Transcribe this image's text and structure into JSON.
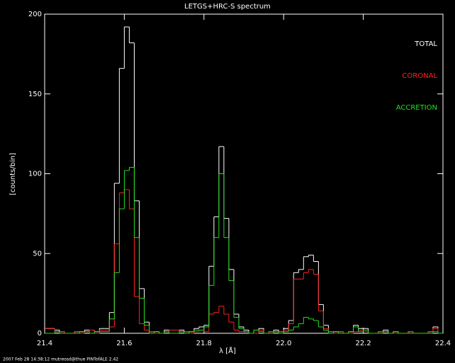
{
  "chart_data": {
    "type": "histogram",
    "title": "LETGS+HRC-S spectrum",
    "x_label": "λ [Å]",
    "y_label": "[counts/bin]",
    "footer": "2007 Feb 28 14:38:12 mutreosd@thue  PINTofALE 2.42",
    "bins": [
      21.4,
      21.4125,
      21.425,
      21.4375,
      21.45,
      21.4625,
      21.475,
      21.4875,
      21.5,
      21.5125,
      21.525,
      21.5375,
      21.55,
      21.5625,
      21.575,
      21.5875,
      21.6,
      21.6125,
      21.625,
      21.6375,
      21.65,
      21.6625,
      21.675,
      21.6875,
      21.7,
      21.7125,
      21.725,
      21.7375,
      21.75,
      21.7625,
      21.775,
      21.7875,
      21.8,
      21.8125,
      21.825,
      21.8375,
      21.85,
      21.8625,
      21.875,
      21.8875,
      21.9,
      21.9125,
      21.925,
      21.9375,
      21.95,
      21.9625,
      21.975,
      21.9875,
      22.0,
      22.0125,
      22.025,
      22.0375,
      22.05,
      22.0625,
      22.075,
      22.0875,
      22.1,
      22.1125,
      22.125,
      22.1375,
      22.15,
      22.1625,
      22.175,
      22.1875,
      22.2,
      22.2125,
      22.225,
      22.2375,
      22.25,
      22.2625,
      22.275,
      22.2875,
      22.3,
      22.3125,
      22.325,
      22.3375,
      22.35,
      22.3625,
      22.375,
      22.3875,
      22.4
    ],
    "series": [
      {
        "name": "TOTAL",
        "color": "#ffffff",
        "values": [
          3,
          3,
          2,
          1,
          0,
          0,
          1,
          1,
          2,
          2,
          1,
          3,
          3,
          13,
          94,
          166,
          192,
          182,
          83,
          28,
          7,
          1,
          1,
          0,
          2,
          2,
          2,
          2,
          1,
          1,
          3,
          4,
          5,
          42,
          73,
          117,
          72,
          40,
          12,
          4,
          2,
          0,
          2,
          3,
          0,
          1,
          2,
          1,
          3,
          8,
          38,
          40,
          48,
          49,
          45,
          18,
          5,
          1,
          1,
          1,
          0,
          1,
          5,
          3,
          3,
          0,
          0,
          1,
          2,
          0,
          1,
          0,
          0,
          1,
          0,
          0,
          0,
          1,
          4,
          0
        ]
      },
      {
        "name": "CORONAL",
        "color": "#ff2020",
        "values": [
          3,
          3,
          1,
          1,
          0,
          0,
          1,
          0,
          1,
          2,
          0,
          2,
          2,
          4,
          56,
          88,
          90,
          78,
          23,
          6,
          2,
          1,
          0,
          0,
          1,
          2,
          2,
          1,
          1,
          0,
          1,
          2,
          1,
          12,
          13,
          17,
          12,
          7,
          2,
          1,
          1,
          0,
          0,
          2,
          0,
          1,
          1,
          1,
          2,
          6,
          34,
          34,
          38,
          40,
          37,
          14,
          3,
          1,
          0,
          1,
          0,
          0,
          1,
          2,
          1,
          0,
          0,
          1,
          1,
          0,
          0,
          0,
          0,
          1,
          0,
          0,
          0,
          1,
          3,
          0
        ]
      },
      {
        "name": "ACCRETION",
        "color": "#20e020",
        "values": [
          0,
          0,
          1,
          0,
          0,
          0,
          0,
          1,
          1,
          0,
          1,
          1,
          1,
          9,
          38,
          78,
          102,
          104,
          60,
          22,
          5,
          0,
          1,
          0,
          1,
          0,
          0,
          1,
          0,
          1,
          2,
          2,
          4,
          30,
          60,
          100,
          60,
          33,
          10,
          3,
          1,
          0,
          2,
          1,
          0,
          0,
          1,
          0,
          1,
          2,
          4,
          6,
          10,
          9,
          8,
          4,
          2,
          0,
          1,
          0,
          0,
          1,
          4,
          1,
          2,
          0,
          0,
          0,
          1,
          0,
          1,
          0,
          0,
          0,
          0,
          0,
          0,
          0,
          1,
          0
        ]
      }
    ],
    "xlim": [
      21.4,
      22.4
    ],
    "xticks": [
      21.4,
      21.6,
      21.8,
      {
        "value": 22,
        "label": "22.0"
      },
      22.2,
      22.4
    ],
    "ylim": [
      0,
      200
    ],
    "yticks": [
      0,
      50,
      100,
      150,
      200
    ],
    "legend": "upper right"
  }
}
